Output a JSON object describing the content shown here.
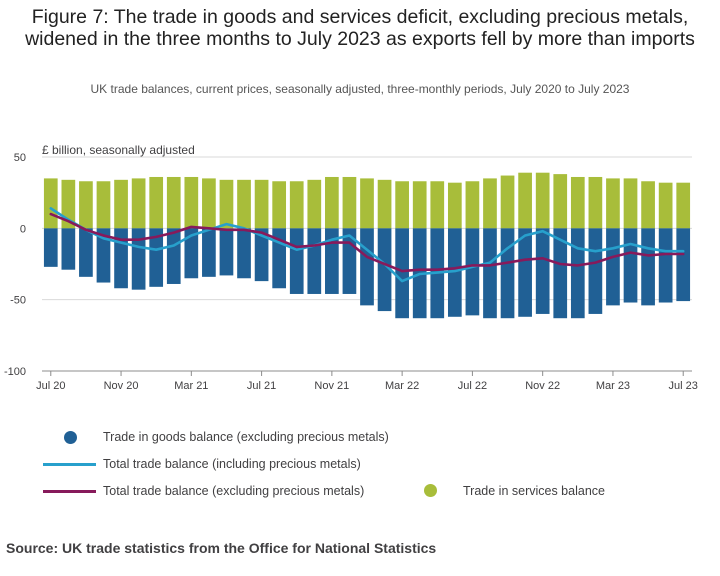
{
  "title": "Figure 7: The trade in goods and services deficit, excluding precious metals, widened in the three months to July 2023 as exports fell by more than imports",
  "subtitle": "UK trade balances, current prices, seasonally adjusted, three-monthly periods, July 2020 to July 2023",
  "source": "Source: UK trade statistics from the Office for National Statistics",
  "colors": {
    "goods": "#206095",
    "services": "#a8bd3a",
    "total_incl": "#27a0cc",
    "total_excl": "#871a5b",
    "grid": "#d9d9d9"
  },
  "chart_data": {
    "type": "bar",
    "ylabel": "£ billion, seasonally adjusted",
    "ylim": [
      -100,
      50
    ],
    "yticks": [
      "50",
      "0",
      "-50",
      "-100"
    ],
    "ytick_values": [
      50,
      0,
      -50,
      -100
    ],
    "xtick_labels": [
      "Jul 20",
      "Nov 20",
      "Mar 21",
      "Jul 21",
      "Nov 21",
      "Mar 22",
      "Jul 22",
      "Nov 22",
      "Mar 23",
      "Jul 23"
    ],
    "xtick_index": [
      0,
      4,
      8,
      12,
      16,
      20,
      24,
      28,
      32,
      36
    ],
    "categories": [
      "Jul 20",
      "Aug 20",
      "Sep 20",
      "Oct 20",
      "Nov 20",
      "Dec 20",
      "Jan 21",
      "Feb 21",
      "Mar 21",
      "Apr 21",
      "May 21",
      "Jun 21",
      "Jul 21",
      "Aug 21",
      "Sep 21",
      "Oct 21",
      "Nov 21",
      "Dec 21",
      "Jan 22",
      "Feb 22",
      "Mar 22",
      "Apr 22",
      "May 22",
      "Jun 22",
      "Jul 22",
      "Aug 22",
      "Sep 22",
      "Oct 22",
      "Nov 22",
      "Dec 22",
      "Jan 23",
      "Feb 23",
      "Mar 23",
      "Apr 23",
      "May 23",
      "Jun 23",
      "Jul 23"
    ],
    "series": [
      {
        "name": "Trade in goods balance (excluding precious metals)",
        "kind": "bar",
        "values": [
          -27,
          -29,
          -34,
          -38,
          -42,
          -43,
          -41,
          -39,
          -35,
          -34,
          -33,
          -35,
          -37,
          -42,
          -46,
          -46,
          -46,
          -46,
          -54,
          -58,
          -63,
          -63,
          -63,
          -62,
          -61,
          -63,
          -63,
          -62,
          -60,
          -63,
          -63,
          -60,
          -54,
          -52,
          -54,
          -52,
          -51
        ]
      },
      {
        "name": "Trade in services balance",
        "kind": "bar",
        "values": [
          35,
          34,
          33,
          33,
          34,
          35,
          36,
          36,
          36,
          35,
          34,
          34,
          34,
          33,
          33,
          34,
          36,
          36,
          35,
          34,
          33,
          33,
          33,
          32,
          33,
          35,
          37,
          39,
          39,
          38,
          36,
          36,
          35,
          35,
          33,
          32,
          32
        ]
      },
      {
        "name": "Total trade balance (including precious metals)",
        "kind": "line",
        "values": [
          14,
          6,
          -1,
          -7,
          -10,
          -13,
          -15,
          -12,
          -5,
          -1,
          3,
          0,
          -5,
          -10,
          -15,
          -12,
          -8,
          -5,
          -15,
          -25,
          -37,
          -32,
          -31,
          -30,
          -27,
          -24,
          -14,
          -5,
          -2,
          -8,
          -14,
          -16,
          -14,
          -11,
          -14,
          -16,
          -16
        ]
      },
      {
        "name": "Total trade balance (excluding precious metals)",
        "kind": "line",
        "values": [
          10,
          5,
          -1,
          -5,
          -8,
          -8,
          -6,
          -3,
          1,
          0,
          -1,
          -1,
          -3,
          -8,
          -13,
          -12,
          -10,
          -10,
          -20,
          -25,
          -30,
          -29,
          -29,
          -28,
          -26,
          -26,
          -24,
          -22,
          -21,
          -25,
          -26,
          -24,
          -20,
          -17,
          -19,
          -18,
          -18
        ]
      }
    ]
  },
  "legend": {
    "goods": "Trade in goods balance (excluding precious metals)",
    "total_incl": "Total trade balance (including precious metals)",
    "total_excl": "Total trade balance (excluding precious metals)",
    "services": "Trade in services balance"
  }
}
